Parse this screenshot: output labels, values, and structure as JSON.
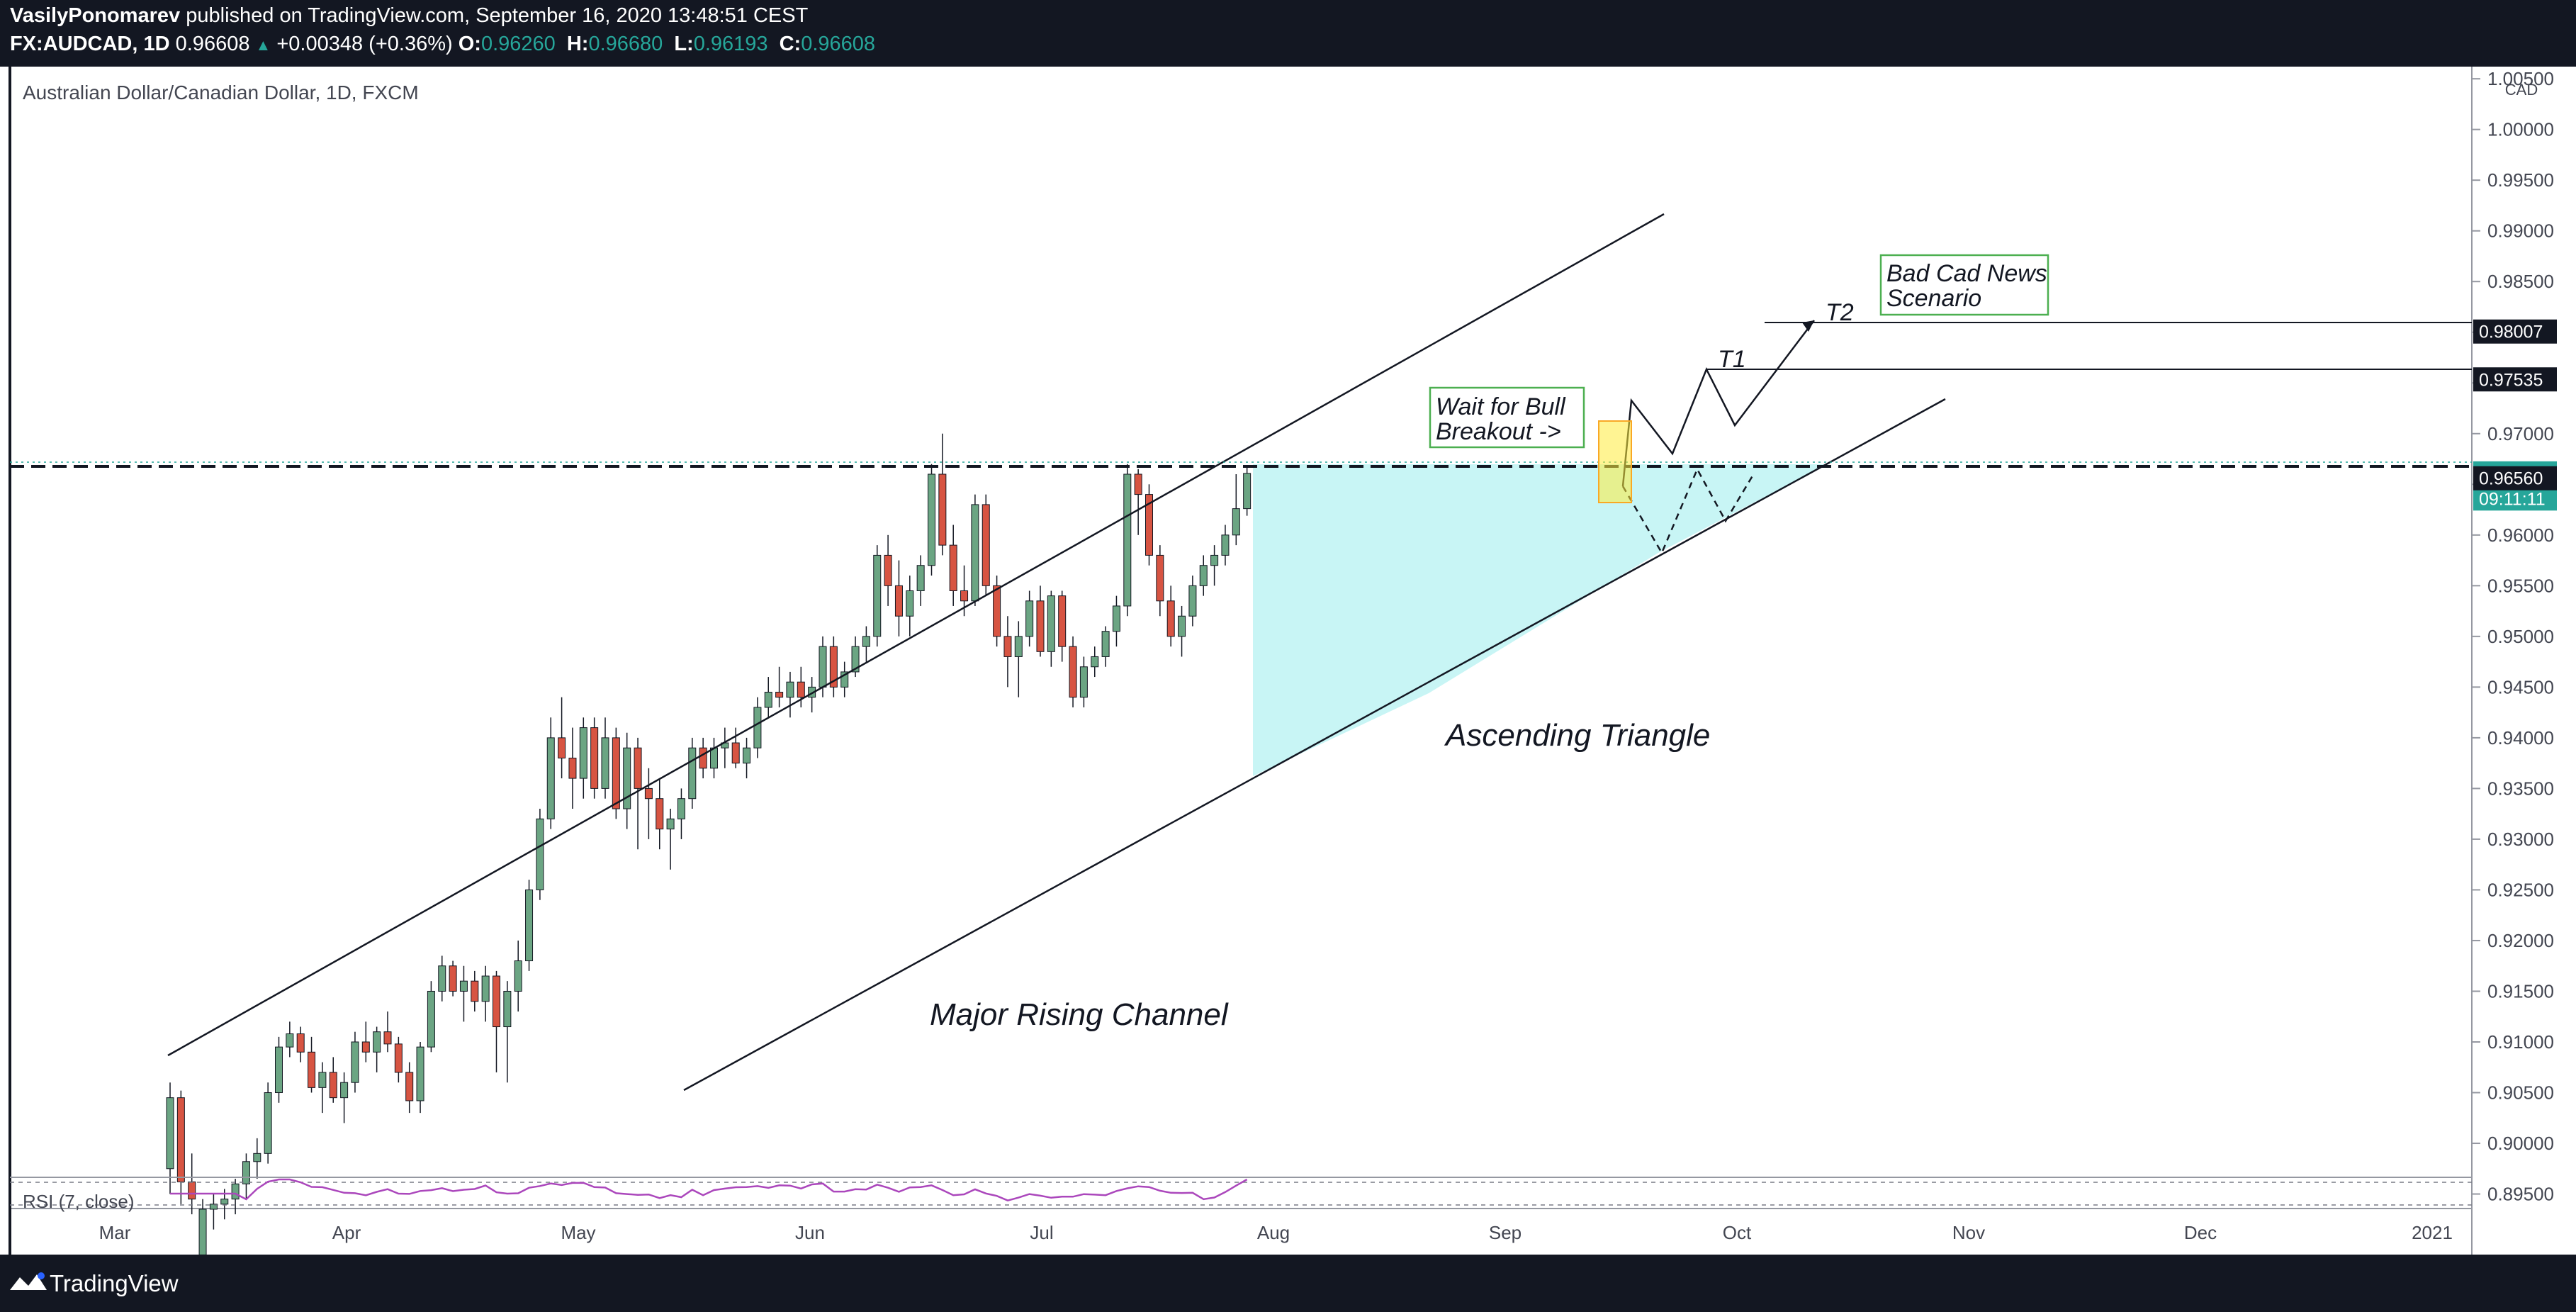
{
  "header": {
    "author": "VasilyPonomarev",
    "published": "published on TradingView.com, September 16, 2020 13:48:51 CEST",
    "symbol": "FX:AUDCAD, 1D",
    "last": "0.96608",
    "change": "+0.00348 (+0.36%)",
    "o_label": "O:",
    "o": "0.96260",
    "h_label": "H:",
    "h": "0.96680",
    "l_label": "L:",
    "l": "0.96193",
    "c_label": "C:",
    "c": "0.96608"
  },
  "chart_title": "Australian Dollar/Canadian Dollar, 1D, FXCM",
  "currency": "CAD",
  "footer": {
    "brand": "TradingView"
  },
  "annotations": {
    "channel": "Major Rising Channel",
    "triangle": "Ascending Triangle",
    "wait_line1": "Wait for Bull",
    "wait_line2": "Breakout ->",
    "bad_line1": "Bad Cad News",
    "bad_line2": "Scenario",
    "t1": "T1",
    "t2": "T2"
  },
  "colors": {
    "background": "#131722",
    "up": "#6ba583",
    "down": "#d75442",
    "triangle_fill": "#c8f5f5",
    "label_green": "#26a69a",
    "rsi": "#ab47bc"
  },
  "chart_data": {
    "type": "candlestick",
    "title": "Australian Dollar/Canadian Dollar, 1D, FXCM",
    "ylim": [
      0.8935,
      1.0055
    ],
    "y_ticks": [
      "1.00500",
      "1.00000",
      "0.99500",
      "0.99000",
      "0.98500",
      "0.98000",
      "0.97500",
      "0.97000",
      "0.96500",
      "0.96000",
      "0.95500",
      "0.95000",
      "0.94500",
      "0.94000",
      "0.93500",
      "0.93000",
      "0.92500",
      "0.92000",
      "0.91500",
      "0.91000",
      "0.90500",
      "0.90000",
      "0.89500"
    ],
    "x_ticks": [
      "Mar",
      "Apr",
      "May",
      "Jun",
      "Jul",
      "Aug",
      "Sep",
      "Oct",
      "Nov",
      "Dec",
      "2021"
    ],
    "price_labels": [
      {
        "label": "0.98007",
        "value": 0.98007,
        "style": "dark"
      },
      {
        "label": "0.97535",
        "value": 0.97535,
        "style": "dark"
      },
      {
        "label": "0.96608",
        "value": 0.96608,
        "style": "green"
      },
      {
        "label": "09:11:11",
        "value": 0.9636,
        "style": "green"
      },
      {
        "label": "0.96560",
        "value": 0.9656,
        "style": "dark"
      }
    ],
    "indicator": {
      "name": "RSI (7, close)"
    },
    "candles": [
      [
        0.8975,
        0.906,
        0.895,
        0.9045
      ],
      [
        0.9045,
        0.9052,
        0.894,
        0.8962
      ],
      [
        0.8962,
        0.899,
        0.893,
        0.8945
      ],
      [
        0.889,
        0.8945,
        0.888,
        0.8935
      ],
      [
        0.8935,
        0.895,
        0.8915,
        0.894
      ],
      [
        0.894,
        0.8955,
        0.8925,
        0.8945
      ],
      [
        0.8945,
        0.8965,
        0.893,
        0.896
      ],
      [
        0.896,
        0.899,
        0.8945,
        0.8982
      ],
      [
        0.8982,
        0.9005,
        0.8965,
        0.899
      ],
      [
        0.899,
        0.906,
        0.898,
        0.905
      ],
      [
        0.905,
        0.9105,
        0.904,
        0.9095
      ],
      [
        0.9095,
        0.912,
        0.9085,
        0.9108
      ],
      [
        0.9108,
        0.9115,
        0.908,
        0.909
      ],
      [
        0.909,
        0.9105,
        0.905,
        0.9055
      ],
      [
        0.9055,
        0.908,
        0.903,
        0.907
      ],
      [
        0.907,
        0.9085,
        0.904,
        0.9045
      ],
      [
        0.9045,
        0.907,
        0.902,
        0.906
      ],
      [
        0.906,
        0.911,
        0.905,
        0.91
      ],
      [
        0.91,
        0.912,
        0.908,
        0.909
      ],
      [
        0.909,
        0.9115,
        0.907,
        0.911
      ],
      [
        0.911,
        0.913,
        0.909,
        0.9098
      ],
      [
        0.9098,
        0.9105,
        0.906,
        0.907
      ],
      [
        0.907,
        0.908,
        0.903,
        0.9042
      ],
      [
        0.9042,
        0.91,
        0.903,
        0.9095
      ],
      [
        0.9095,
        0.916,
        0.909,
        0.915
      ],
      [
        0.915,
        0.9185,
        0.914,
        0.9175
      ],
      [
        0.9175,
        0.918,
        0.9145,
        0.915
      ],
      [
        0.915,
        0.9175,
        0.912,
        0.916
      ],
      [
        0.916,
        0.917,
        0.913,
        0.914
      ],
      [
        0.914,
        0.9175,
        0.912,
        0.9165
      ],
      [
        0.9165,
        0.917,
        0.907,
        0.9115
      ],
      [
        0.9115,
        0.916,
        0.906,
        0.915
      ],
      [
        0.915,
        0.92,
        0.913,
        0.918
      ],
      [
        0.918,
        0.926,
        0.917,
        0.925
      ],
      [
        0.925,
        0.933,
        0.924,
        0.932
      ],
      [
        0.932,
        0.942,
        0.931,
        0.94
      ],
      [
        0.94,
        0.944,
        0.936,
        0.938
      ],
      [
        0.938,
        0.941,
        0.933,
        0.936
      ],
      [
        0.936,
        0.942,
        0.934,
        0.941
      ],
      [
        0.941,
        0.942,
        0.934,
        0.935
      ],
      [
        0.935,
        0.942,
        0.934,
        0.94
      ],
      [
        0.94,
        0.941,
        0.932,
        0.933
      ],
      [
        0.933,
        0.9405,
        0.931,
        0.939
      ],
      [
        0.939,
        0.94,
        0.929,
        0.935
      ],
      [
        0.935,
        0.937,
        0.93,
        0.934
      ],
      [
        0.934,
        0.936,
        0.929,
        0.931
      ],
      [
        0.931,
        0.933,
        0.927,
        0.932
      ],
      [
        0.932,
        0.935,
        0.93,
        0.934
      ],
      [
        0.934,
        0.94,
        0.933,
        0.939
      ],
      [
        0.939,
        0.94,
        0.936,
        0.937
      ],
      [
        0.937,
        0.94,
        0.936,
        0.939
      ],
      [
        0.939,
        0.941,
        0.937,
        0.9395
      ],
      [
        0.9395,
        0.941,
        0.937,
        0.9375
      ],
      [
        0.9375,
        0.94,
        0.936,
        0.939
      ],
      [
        0.939,
        0.944,
        0.938,
        0.943
      ],
      [
        0.943,
        0.946,
        0.942,
        0.9445
      ],
      [
        0.9445,
        0.947,
        0.943,
        0.944
      ],
      [
        0.944,
        0.9465,
        0.942,
        0.9455
      ],
      [
        0.9455,
        0.947,
        0.943,
        0.944
      ],
      [
        0.944,
        0.946,
        0.9425,
        0.945
      ],
      [
        0.945,
        0.95,
        0.944,
        0.949
      ],
      [
        0.949,
        0.95,
        0.944,
        0.945
      ],
      [
        0.945,
        0.9475,
        0.944,
        0.9465
      ],
      [
        0.9465,
        0.95,
        0.946,
        0.949
      ],
      [
        0.949,
        0.951,
        0.9475,
        0.95
      ],
      [
        0.95,
        0.959,
        0.949,
        0.958
      ],
      [
        0.958,
        0.96,
        0.953,
        0.955
      ],
      [
        0.955,
        0.9575,
        0.95,
        0.952
      ],
      [
        0.952,
        0.956,
        0.95,
        0.9545
      ],
      [
        0.9545,
        0.958,
        0.953,
        0.957
      ],
      [
        0.957,
        0.967,
        0.956,
        0.966
      ],
      [
        0.966,
        0.97,
        0.958,
        0.959
      ],
      [
        0.959,
        0.961,
        0.953,
        0.9545
      ],
      [
        0.9545,
        0.957,
        0.952,
        0.9535
      ],
      [
        0.9535,
        0.964,
        0.953,
        0.963
      ],
      [
        0.963,
        0.964,
        0.954,
        0.955
      ],
      [
        0.955,
        0.956,
        0.949,
        0.95
      ],
      [
        0.95,
        0.952,
        0.945,
        0.948
      ],
      [
        0.948,
        0.9515,
        0.944,
        0.95
      ],
      [
        0.95,
        0.9545,
        0.949,
        0.9535
      ],
      [
        0.9535,
        0.955,
        0.948,
        0.9485
      ],
      [
        0.9485,
        0.9545,
        0.947,
        0.954
      ],
      [
        0.954,
        0.9545,
        0.9475,
        0.949
      ],
      [
        0.949,
        0.95,
        0.943,
        0.944
      ],
      [
        0.944,
        0.948,
        0.943,
        0.947
      ],
      [
        0.947,
        0.949,
        0.946,
        0.948
      ],
      [
        0.948,
        0.951,
        0.947,
        0.9505
      ],
      [
        0.9505,
        0.954,
        0.949,
        0.953
      ],
      [
        0.953,
        0.967,
        0.952,
        0.966
      ],
      [
        0.966,
        0.9665,
        0.96,
        0.964
      ],
      [
        0.964,
        0.965,
        0.957,
        0.958
      ],
      [
        0.958,
        0.959,
        0.952,
        0.9535
      ],
      [
        0.9535,
        0.955,
        0.949,
        0.95
      ],
      [
        0.95,
        0.953,
        0.948,
        0.952
      ],
      [
        0.952,
        0.956,
        0.951,
        0.955
      ],
      [
        0.955,
        0.958,
        0.954,
        0.957
      ],
      [
        0.957,
        0.959,
        0.955,
        0.958
      ],
      [
        0.958,
        0.961,
        0.957,
        0.96
      ],
      [
        0.96,
        0.966,
        0.959,
        0.9626
      ],
      [
        0.9626,
        0.9668,
        0.9619,
        0.96608
      ]
    ]
  }
}
